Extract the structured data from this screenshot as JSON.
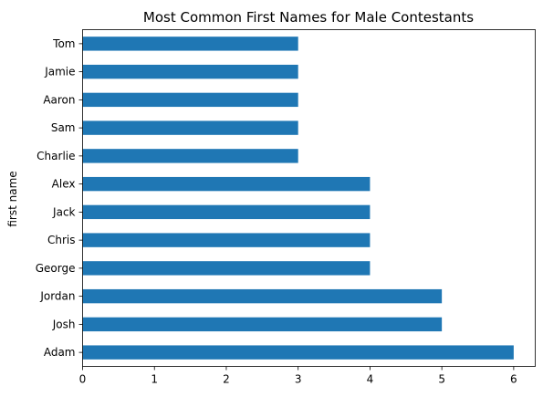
{
  "chart_data": {
    "type": "bar",
    "orientation": "horizontal",
    "title": "Most Common First Names for Male Contestants",
    "xlabel": "",
    "ylabel": "first name",
    "categories": [
      "Adam",
      "Josh",
      "Jordan",
      "George",
      "Chris",
      "Jack",
      "Alex",
      "Charlie",
      "Sam",
      "Aaron",
      "Jamie",
      "Tom"
    ],
    "values": [
      6,
      5,
      5,
      4,
      4,
      4,
      4,
      3,
      3,
      3,
      3,
      3
    ],
    "xlim": [
      0,
      6.3
    ],
    "xticks": [
      0,
      1,
      2,
      3,
      4,
      5,
      6
    ],
    "bar_color": "#1f77b4",
    "grid": false,
    "legend": "none"
  }
}
